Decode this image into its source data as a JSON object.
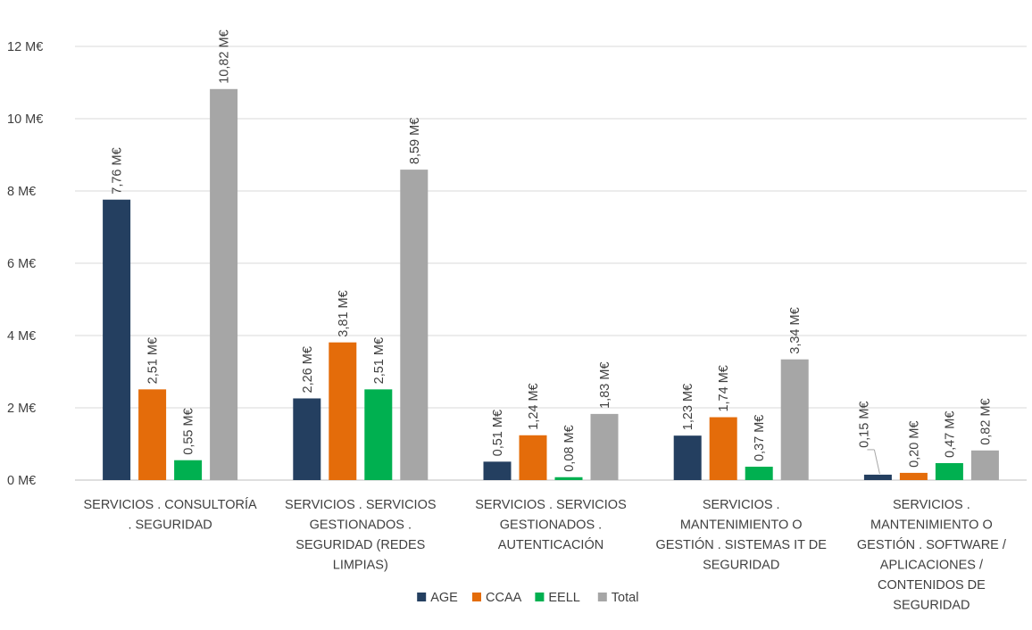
{
  "chart_data": {
    "type": "bar",
    "title": "",
    "xlabel": "",
    "ylabel": "",
    "ylim": [
      0,
      12
    ],
    "y_ticks": [
      {
        "value": 0,
        "label": "0 M€"
      },
      {
        "value": 2,
        "label": "2 M€"
      },
      {
        "value": 4,
        "label": "4 M€"
      },
      {
        "value": 6,
        "label": "6 M€"
      },
      {
        "value": 8,
        "label": "8 M€"
      },
      {
        "value": 10,
        "label": "10 M€"
      },
      {
        "value": 12,
        "label": "12 M€"
      }
    ],
    "grid": true,
    "legend_position": "bottom",
    "categories": [
      [
        "SERVICIOS . CONSULTORÍA",
        ". SEGURIDAD"
      ],
      [
        "SERVICIOS . SERVICIOS",
        "GESTIONADOS .",
        "SEGURIDAD (REDES",
        "LIMPIAS)"
      ],
      [
        "SERVICIOS . SERVICIOS",
        "GESTIONADOS .",
        "AUTENTICACIÓN"
      ],
      [
        "SERVICIOS .",
        "MANTENIMIENTO O",
        "GESTIÓN . SISTEMAS IT DE",
        "SEGURIDAD"
      ],
      [
        "SERVICIOS .",
        "MANTENIMIENTO O",
        "GESTIÓN . SOFTWARE /",
        "APLICACIONES /",
        "CONTENIDOS DE",
        "SEGURIDAD"
      ]
    ],
    "series": [
      {
        "name": "AGE",
        "color": "#243f60",
        "values": [
          7.76,
          2.26,
          0.51,
          1.23,
          0.15
        ],
        "labels": [
          "7,76 M€",
          "2,26 M€",
          "0,51 M€",
          "1,23 M€",
          "0,15 M€"
        ]
      },
      {
        "name": "CCAA",
        "color": "#e46c0a",
        "values": [
          2.51,
          3.81,
          1.24,
          1.74,
          0.2
        ],
        "labels": [
          "2,51 M€",
          "3,81 M€",
          "1,24 M€",
          "1,74 M€",
          "0,20 M€"
        ]
      },
      {
        "name": "EELL",
        "color": "#00b050",
        "values": [
          0.55,
          2.51,
          0.08,
          0.37,
          0.47
        ],
        "labels": [
          "0,55 M€",
          "2,51 M€",
          "0,08 M€",
          "0,37 M€",
          "0,47 M€"
        ]
      },
      {
        "name": "Total",
        "color": "#a6a6a6",
        "values": [
          10.82,
          8.59,
          1.83,
          3.34,
          0.82
        ],
        "labels": [
          "10,82 M€",
          "8,59 M€",
          "1,83 M€",
          "3,34 M€",
          "0,82 M€"
        ]
      }
    ]
  }
}
